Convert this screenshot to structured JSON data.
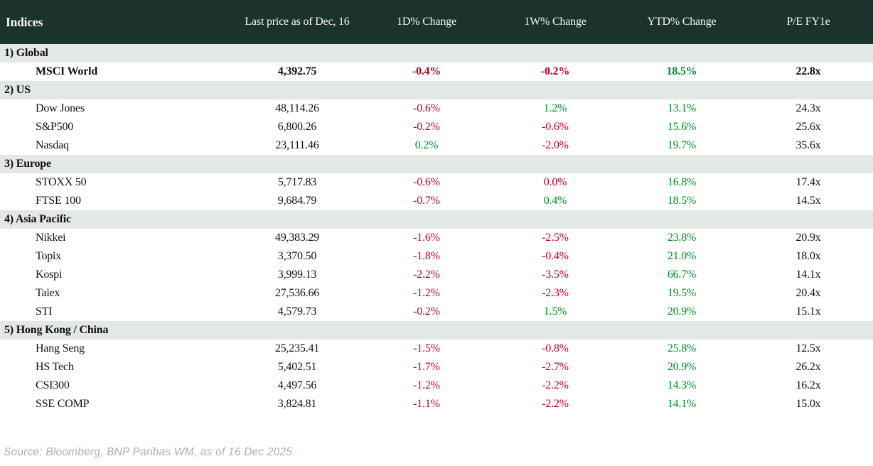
{
  "table": {
    "columns": [
      "Indices",
      "Last price as of Dec, 16",
      "1D% Change",
      "1W% Change",
      "YTD% Change",
      "P/E FY1e"
    ],
    "sections": [
      {
        "label": "1) Global",
        "rows": [
          {
            "name": "MSCI World",
            "bold": true,
            "values": [
              "4,392.75",
              "-0.4%",
              "-0.2%",
              "18.5%",
              "22.8x"
            ],
            "colors": [
              "default",
              "neg",
              "neg",
              "pos",
              "default"
            ]
          }
        ]
      },
      {
        "label": "2) US",
        "rows": [
          {
            "name": "Dow Jones",
            "bold": false,
            "values": [
              "48,114.26",
              "-0.6%",
              "1.2%",
              "13.1%",
              "24.3x"
            ],
            "colors": [
              "default",
              "neg",
              "pos",
              "pos",
              "default"
            ]
          },
          {
            "name": "S&P500",
            "bold": false,
            "values": [
              "6,800.26",
              "-0.2%",
              "-0.6%",
              "15.6%",
              "25.6x"
            ],
            "colors": [
              "default",
              "neg",
              "neg",
              "pos",
              "default"
            ]
          },
          {
            "name": "Nasdaq",
            "bold": false,
            "values": [
              "23,111.46",
              "0.2%",
              "-2.0%",
              "19.7%",
              "35.6x"
            ],
            "colors": [
              "default",
              "pos",
              "neg",
              "pos",
              "default"
            ]
          }
        ]
      },
      {
        "label": "3) Europe",
        "rows": [
          {
            "name": "STOXX 50",
            "bold": false,
            "values": [
              "5,717.83",
              "-0.6%",
              "0.0%",
              "16.8%",
              "17.4x"
            ],
            "colors": [
              "default",
              "neg",
              "neg",
              "pos",
              "default"
            ]
          },
          {
            "name": "FTSE 100",
            "bold": false,
            "values": [
              "9,684.79",
              "-0.7%",
              "0.4%",
              "18.5%",
              "14.5x"
            ],
            "colors": [
              "default",
              "neg",
              "pos",
              "pos",
              "default"
            ]
          }
        ]
      },
      {
        "label": "4) Asia Pacific",
        "rows": [
          {
            "name": "Nikkei",
            "bold": false,
            "values": [
              "49,383.29",
              "-1.6%",
              "-2.5%",
              "23.8%",
              "20.9x"
            ],
            "colors": [
              "default",
              "neg",
              "neg",
              "pos",
              "default"
            ]
          },
          {
            "name": "Topix",
            "bold": false,
            "values": [
              "3,370.50",
              "-1.8%",
              "-0.4%",
              "21.0%",
              "18.0x"
            ],
            "colors": [
              "default",
              "neg",
              "neg",
              "pos",
              "default"
            ]
          },
          {
            "name": "Kospi",
            "bold": false,
            "values": [
              "3,999.13",
              "-2.2%",
              "-3.5%",
              "66.7%",
              "14.1x"
            ],
            "colors": [
              "default",
              "neg",
              "neg",
              "pos",
              "default"
            ]
          },
          {
            "name": "Taiex",
            "bold": false,
            "values": [
              "27,536.66",
              "-1.2%",
              "-2.3%",
              "19.5%",
              "20.4x"
            ],
            "colors": [
              "default",
              "neg",
              "neg",
              "pos",
              "default"
            ]
          },
          {
            "name": "STI",
            "bold": false,
            "values": [
              "4,579.73",
              "-0.2%",
              "1.5%",
              "20.9%",
              "15.1x"
            ],
            "colors": [
              "default",
              "neg",
              "pos",
              "pos",
              "default"
            ]
          }
        ]
      },
      {
        "label": "5) Hong Kong / China",
        "rows": [
          {
            "name": "Hang Seng",
            "bold": false,
            "values": [
              "25,235.41",
              "-1.5%",
              "-0.8%",
              "25.8%",
              "12.5x"
            ],
            "colors": [
              "default",
              "neg",
              "neg",
              "pos",
              "default"
            ]
          },
          {
            "name": "HS Tech",
            "bold": false,
            "values": [
              "5,402.51",
              "-1.7%",
              "-2.7%",
              "20.9%",
              "26.2x"
            ],
            "colors": [
              "default",
              "neg",
              "neg",
              "pos",
              "default"
            ]
          },
          {
            "name": "CSI300",
            "bold": false,
            "values": [
              "4,497.56",
              "-1.2%",
              "-2.2%",
              "14.3%",
              "16.2x"
            ],
            "colors": [
              "default",
              "neg",
              "neg",
              "pos",
              "default"
            ]
          },
          {
            "name": "SSE COMP",
            "bold": false,
            "values": [
              "3,824.81",
              "-1.1%",
              "-2.2%",
              "14.1%",
              "15.0x"
            ],
            "colors": [
              "default",
              "neg",
              "neg",
              "pos",
              "default"
            ]
          }
        ]
      }
    ]
  },
  "footer": {
    "source_note": "Source: Bloomberg, BNP Paribas WM, as of 16 Dec 2025."
  },
  "colors": {
    "header_bg": "#1b322d",
    "header_text": "#f7f6f1",
    "section_bg": "#e3e8e4",
    "negative": "#c00021",
    "positive": "#008c27",
    "body_text": "#111111",
    "source_text": "#a7b0b6"
  }
}
